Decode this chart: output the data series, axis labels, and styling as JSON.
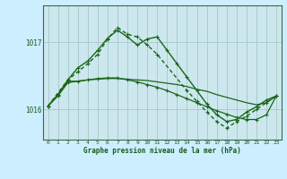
{
  "title": "Graphe pression niveau de la mer (hPa)",
  "bg_color": "#cceeff",
  "plot_bg_color": "#cce8ee",
  "grid_color": "#aacccc",
  "line_color": "#1a6618",
  "xmin": -0.5,
  "xmax": 23.5,
  "ymin": 1015.55,
  "ymax": 1017.55,
  "yticks": [
    1016,
    1017
  ],
  "xticks": [
    0,
    1,
    2,
    3,
    4,
    5,
    6,
    7,
    8,
    9,
    10,
    11,
    12,
    13,
    14,
    15,
    16,
    17,
    18,
    19,
    20,
    21,
    22,
    23
  ],
  "s1_x": [
    0,
    1,
    2,
    3,
    4,
    5,
    6,
    7,
    8,
    9,
    10,
    11,
    12,
    13,
    14,
    15,
    16,
    17,
    18,
    19,
    20,
    21,
    22,
    23
  ],
  "s1_y": [
    1016.05,
    1016.22,
    1016.42,
    1016.42,
    1016.44,
    1016.45,
    1016.46,
    1016.46,
    1016.45,
    1016.44,
    1016.43,
    1016.41,
    1016.39,
    1016.37,
    1016.34,
    1016.3,
    1016.27,
    1016.22,
    1016.18,
    1016.14,
    1016.1,
    1016.07,
    1016.1,
    1016.2
  ],
  "s2_x": [
    0,
    1,
    2,
    3,
    4,
    5,
    6,
    7,
    8,
    9,
    10,
    11,
    12,
    13,
    14,
    15,
    16,
    17,
    18,
    19,
    20,
    21,
    22,
    23
  ],
  "s2_y": [
    1016.05,
    1016.2,
    1016.4,
    1016.42,
    1016.44,
    1016.46,
    1016.47,
    1016.47,
    1016.44,
    1016.41,
    1016.37,
    1016.33,
    1016.28,
    1016.22,
    1016.16,
    1016.1,
    1016.04,
    1015.98,
    1015.93,
    1015.88,
    1015.85,
    1015.85,
    1015.92,
    1016.2
  ],
  "s3_x": [
    0,
    1,
    2,
    3,
    4,
    5,
    6,
    7,
    8,
    9,
    10,
    11,
    12,
    13,
    14,
    15,
    16,
    17,
    18,
    19,
    20,
    21,
    22,
    23
  ],
  "s3_y": [
    1016.05,
    1016.22,
    1016.44,
    1016.62,
    1016.72,
    1016.88,
    1017.06,
    1017.18,
    1017.08,
    1016.96,
    1017.05,
    1017.08,
    1016.88,
    1016.68,
    1016.48,
    1016.28,
    1016.08,
    1015.92,
    1015.82,
    1015.85,
    1015.96,
    1016.04,
    1016.14,
    1016.2
  ],
  "s4_x": [
    0,
    2,
    3,
    4,
    5,
    6,
    7,
    8,
    9,
    10,
    11,
    14,
    15,
    16,
    17,
    18,
    19,
    20,
    21,
    22,
    23
  ],
  "s4_y": [
    1016.05,
    1016.44,
    1016.56,
    1016.68,
    1016.82,
    1017.05,
    1017.22,
    1017.12,
    1017.08,
    1016.96,
    1016.82,
    1016.28,
    1016.12,
    1015.96,
    1015.82,
    1015.72,
    1015.82,
    1015.9,
    1016.0,
    1016.1,
    1016.2
  ]
}
